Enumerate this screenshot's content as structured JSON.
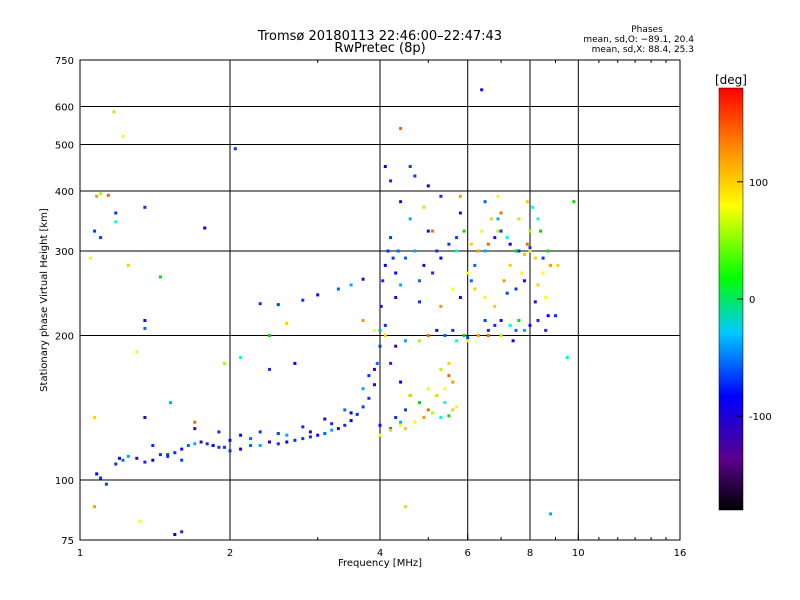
{
  "chart_data": {
    "type": "scatter",
    "title": "Tromsø 20180113 22:46:00–22:47:43",
    "subtitle": "RwPretec (8p)",
    "xlabel": "Frequency [MHz]",
    "ylabel": "Stationary phase Virtual Height [km]",
    "x_scale": "log",
    "y_scale": "log",
    "xlim": [
      1,
      16
    ],
    "ylim": [
      75,
      750
    ],
    "x_ticks": [
      1,
      2,
      4,
      6,
      8,
      10,
      16
    ],
    "y_ticks": [
      75,
      100,
      200,
      300,
      400,
      500,
      600,
      750
    ],
    "grid": true,
    "stats": {
      "heading": "Phases",
      "line_o": "mean, sd,O: −89.1, 20.4",
      "line_x": "mean, sd,X:  88.4, 25.3"
    },
    "colorbar": {
      "label": "[deg]",
      "ticks": [
        100,
        0,
        -100
      ],
      "range": [
        -180,
        180
      ]
    },
    "series": [
      {
        "points": [
          [
            1.08,
            103
          ],
          [
            1.1,
            101
          ],
          [
            1.13,
            98
          ],
          [
            1.18,
            108
          ],
          [
            1.2,
            111
          ],
          [
            1.22,
            110
          ],
          [
            1.25,
            112
          ],
          [
            1.3,
            111
          ],
          [
            1.35,
            109
          ],
          [
            1.4,
            110
          ],
          [
            1.45,
            113
          ],
          [
            1.5,
            113
          ],
          [
            1.55,
            114
          ],
          [
            1.6,
            116
          ],
          [
            1.65,
            118
          ],
          [
            1.7,
            119
          ],
          [
            1.75,
            120
          ],
          [
            1.8,
            119
          ],
          [
            1.85,
            118
          ],
          [
            1.9,
            117
          ],
          [
            1.95,
            117
          ],
          [
            2.0,
            115
          ],
          [
            2.1,
            116
          ],
          [
            2.2,
            118
          ],
          [
            2.3,
            118
          ],
          [
            2.4,
            120
          ],
          [
            2.5,
            119
          ],
          [
            2.6,
            120
          ],
          [
            2.7,
            121
          ],
          [
            2.8,
            122
          ],
          [
            2.9,
            123
          ],
          [
            3.0,
            124
          ],
          [
            3.1,
            125
          ],
          [
            3.2,
            127
          ],
          [
            3.3,
            128
          ],
          [
            3.4,
            130
          ],
          [
            3.5,
            133
          ],
          [
            3.6,
            137
          ],
          [
            3.7,
            142
          ],
          [
            3.8,
            148
          ],
          [
            3.9,
            158
          ],
          [
            3.95,
            175
          ],
          [
            4.0,
            205
          ],
          [
            4.02,
            230
          ],
          [
            4.05,
            260
          ],
          [
            4.1,
            280
          ],
          [
            4.15,
            300
          ],
          [
            4.2,
            320
          ],
          [
            4.25,
            290
          ],
          [
            4.3,
            270
          ],
          [
            4.35,
            300
          ],
          [
            4.4,
            255
          ],
          [
            1.7,
            128
          ],
          [
            1.9,
            126
          ],
          [
            2.1,
            124
          ],
          [
            2.3,
            126
          ],
          [
            2.5,
            125
          ],
          [
            2.8,
            129
          ],
          [
            3.1,
            134
          ],
          [
            3.4,
            140
          ],
          [
            3.7,
            155
          ],
          [
            3.9,
            170
          ],
          [
            2.4,
            170
          ],
          [
            2.7,
            175
          ],
          [
            1.5,
            112
          ],
          [
            1.6,
            110
          ],
          [
            1.4,
            118
          ],
          [
            2.0,
            121
          ],
          [
            2.2,
            122
          ],
          [
            2.6,
            124
          ],
          [
            2.9,
            126
          ],
          [
            3.2,
            131
          ],
          [
            3.5,
            138
          ],
          [
            3.8,
            165
          ],
          [
            4.0,
            190
          ],
          [
            4.1,
            210
          ],
          [
            4.3,
            240
          ],
          [
            4.5,
            290
          ],
          [
            4.7,
            300
          ],
          [
            4.9,
            280
          ],
          [
            5.1,
            270
          ],
          [
            5.3,
            290
          ],
          [
            5.5,
            310
          ],
          [
            5.7,
            320
          ],
          [
            5.2,
            300
          ],
          [
            5.0,
            330
          ],
          [
            4.8,
            260
          ],
          [
            4.6,
            350
          ],
          [
            4.4,
            380
          ],
          [
            4.2,
            420
          ],
          [
            4.1,
            450
          ],
          [
            2.3,
            233
          ],
          [
            2.5,
            232
          ],
          [
            2.8,
            237
          ],
          [
            3.0,
            243
          ],
          [
            3.3,
            250
          ],
          [
            3.5,
            255
          ],
          [
            3.7,
            262
          ],
          [
            1.35,
            370
          ],
          [
            1.78,
            335
          ],
          [
            1.07,
            330
          ],
          [
            1.1,
            320
          ],
          [
            1.18,
            360
          ],
          [
            1.35,
            215
          ],
          [
            1.35,
            207
          ],
          [
            1.52,
            145
          ],
          [
            1.35,
            135
          ],
          [
            1.6,
            78
          ],
          [
            1.55,
            77
          ],
          [
            2.05,
            490
          ],
          [
            6.5,
            215
          ],
          [
            6.8,
            210
          ],
          [
            7.0,
            215
          ],
          [
            7.5,
            205
          ],
          [
            7.8,
            205
          ],
          [
            8.0,
            210
          ],
          [
            8.3,
            215
          ],
          [
            8.7,
            220
          ],
          [
            9.0,
            220
          ],
          [
            7.2,
            245
          ],
          [
            7.5,
            250
          ],
          [
            7.8,
            260
          ],
          [
            6.2,
            280
          ],
          [
            6.5,
            300
          ],
          [
            6.8,
            320
          ],
          [
            7.0,
            330
          ],
          [
            7.3,
            310
          ],
          [
            7.6,
            300
          ],
          [
            8.0,
            305
          ],
          [
            8.5,
            290
          ],
          [
            6.4,
            650
          ],
          [
            6.5,
            380
          ],
          [
            6.9,
            350
          ],
          [
            5.8,
            360
          ],
          [
            5.3,
            390
          ],
          [
            5.0,
            410
          ],
          [
            4.7,
            430
          ],
          [
            4.6,
            450
          ],
          [
            4.8,
            235
          ],
          [
            5.2,
            205
          ],
          [
            5.4,
            200
          ],
          [
            4.5,
            195
          ],
          [
            4.3,
            190
          ],
          [
            4.2,
            175
          ],
          [
            4.4,
            160
          ],
          [
            4.6,
            150
          ],
          [
            4.5,
            140
          ],
          [
            4.3,
            135
          ],
          [
            4.0,
            130
          ],
          [
            4.2,
            128
          ],
          [
            4.4,
            132
          ],
          [
            8.2,
            235
          ],
          [
            8.6,
            205
          ],
          [
            7.4,
            195
          ],
          [
            6.6,
            205
          ],
          [
            6.0,
            198
          ],
          [
            5.6,
            205
          ],
          [
            5.8,
            240
          ],
          [
            6.1,
            260
          ],
          [
            8.8,
            85
          ]
        ],
        "phase": "O"
      },
      {
        "points": [
          [
            4.5,
            128
          ],
          [
            4.7,
            132
          ],
          [
            4.9,
            135
          ],
          [
            5.0,
            140
          ],
          [
            5.1,
            138
          ],
          [
            5.3,
            135
          ],
          [
            5.5,
            136
          ],
          [
            5.6,
            140
          ],
          [
            5.7,
            142
          ],
          [
            5.2,
            150
          ],
          [
            5.4,
            155
          ],
          [
            5.6,
            160
          ],
          [
            5.5,
            165
          ],
          [
            5.3,
            170
          ],
          [
            5.4,
            145
          ],
          [
            4.8,
            145
          ],
          [
            4.6,
            150
          ],
          [
            5.0,
            155
          ],
          [
            5.5,
            175
          ],
          [
            6.0,
            195
          ],
          [
            6.3,
            200
          ],
          [
            6.6,
            200
          ],
          [
            7.0,
            200
          ],
          [
            7.3,
            210
          ],
          [
            7.6,
            215
          ],
          [
            6.8,
            230
          ],
          [
            6.5,
            240
          ],
          [
            6.2,
            250
          ],
          [
            6.0,
            270
          ],
          [
            6.3,
            300
          ],
          [
            6.6,
            310
          ],
          [
            6.9,
            330
          ],
          [
            7.2,
            320
          ],
          [
            7.5,
            300
          ],
          [
            7.8,
            295
          ],
          [
            8.0,
            300
          ],
          [
            8.2,
            290
          ],
          [
            8.5,
            270
          ],
          [
            8.8,
            280
          ],
          [
            7.0,
            360
          ],
          [
            7.6,
            350
          ],
          [
            8.1,
            370
          ],
          [
            8.4,
            330
          ],
          [
            7.9,
            380
          ],
          [
            4.4,
            130
          ],
          [
            4.2,
            127
          ],
          [
            4.0,
            124
          ],
          [
            5.8,
            390
          ],
          [
            5.1,
            330
          ],
          [
            4.9,
            370
          ],
          [
            5.7,
            300
          ],
          [
            5.9,
            330
          ],
          [
            6.1,
            310
          ],
          [
            6.4,
            330
          ],
          [
            6.7,
            350
          ],
          [
            5.6,
            250
          ],
          [
            5.3,
            230
          ],
          [
            5.0,
            200
          ],
          [
            4.8,
            195
          ],
          [
            5.7,
            195
          ],
          [
            5.9,
            200
          ],
          [
            7.3,
            280
          ],
          [
            7.7,
            270
          ],
          [
            8.3,
            255
          ],
          [
            8.6,
            240
          ],
          [
            7.1,
            260
          ],
          [
            7.9,
            310
          ],
          [
            8.0,
            330
          ],
          [
            8.3,
            350
          ],
          [
            8.7,
            300
          ],
          [
            9.1,
            280
          ],
          [
            6.9,
            390
          ],
          [
            1.17,
            585
          ],
          [
            1.22,
            520
          ],
          [
            1.08,
            390
          ],
          [
            1.14,
            392
          ],
          [
            1.1,
            395
          ],
          [
            1.18,
            345
          ],
          [
            1.45,
            265
          ],
          [
            1.25,
            280
          ],
          [
            1.05,
            290
          ],
          [
            1.07,
            135
          ],
          [
            1.32,
            82
          ],
          [
            1.07,
            88
          ],
          [
            1.7,
            132
          ],
          [
            1.95,
            175
          ],
          [
            2.1,
            180
          ],
          [
            2.4,
            200
          ],
          [
            2.6,
            212
          ],
          [
            1.3,
            185
          ],
          [
            4.1,
            200
          ],
          [
            3.9,
            205
          ],
          [
            3.7,
            215
          ],
          [
            4.4,
            540
          ],
          [
            4.5,
            88
          ],
          [
            9.5,
            180
          ],
          [
            9.8,
            380
          ]
        ],
        "phase": "X"
      }
    ]
  }
}
